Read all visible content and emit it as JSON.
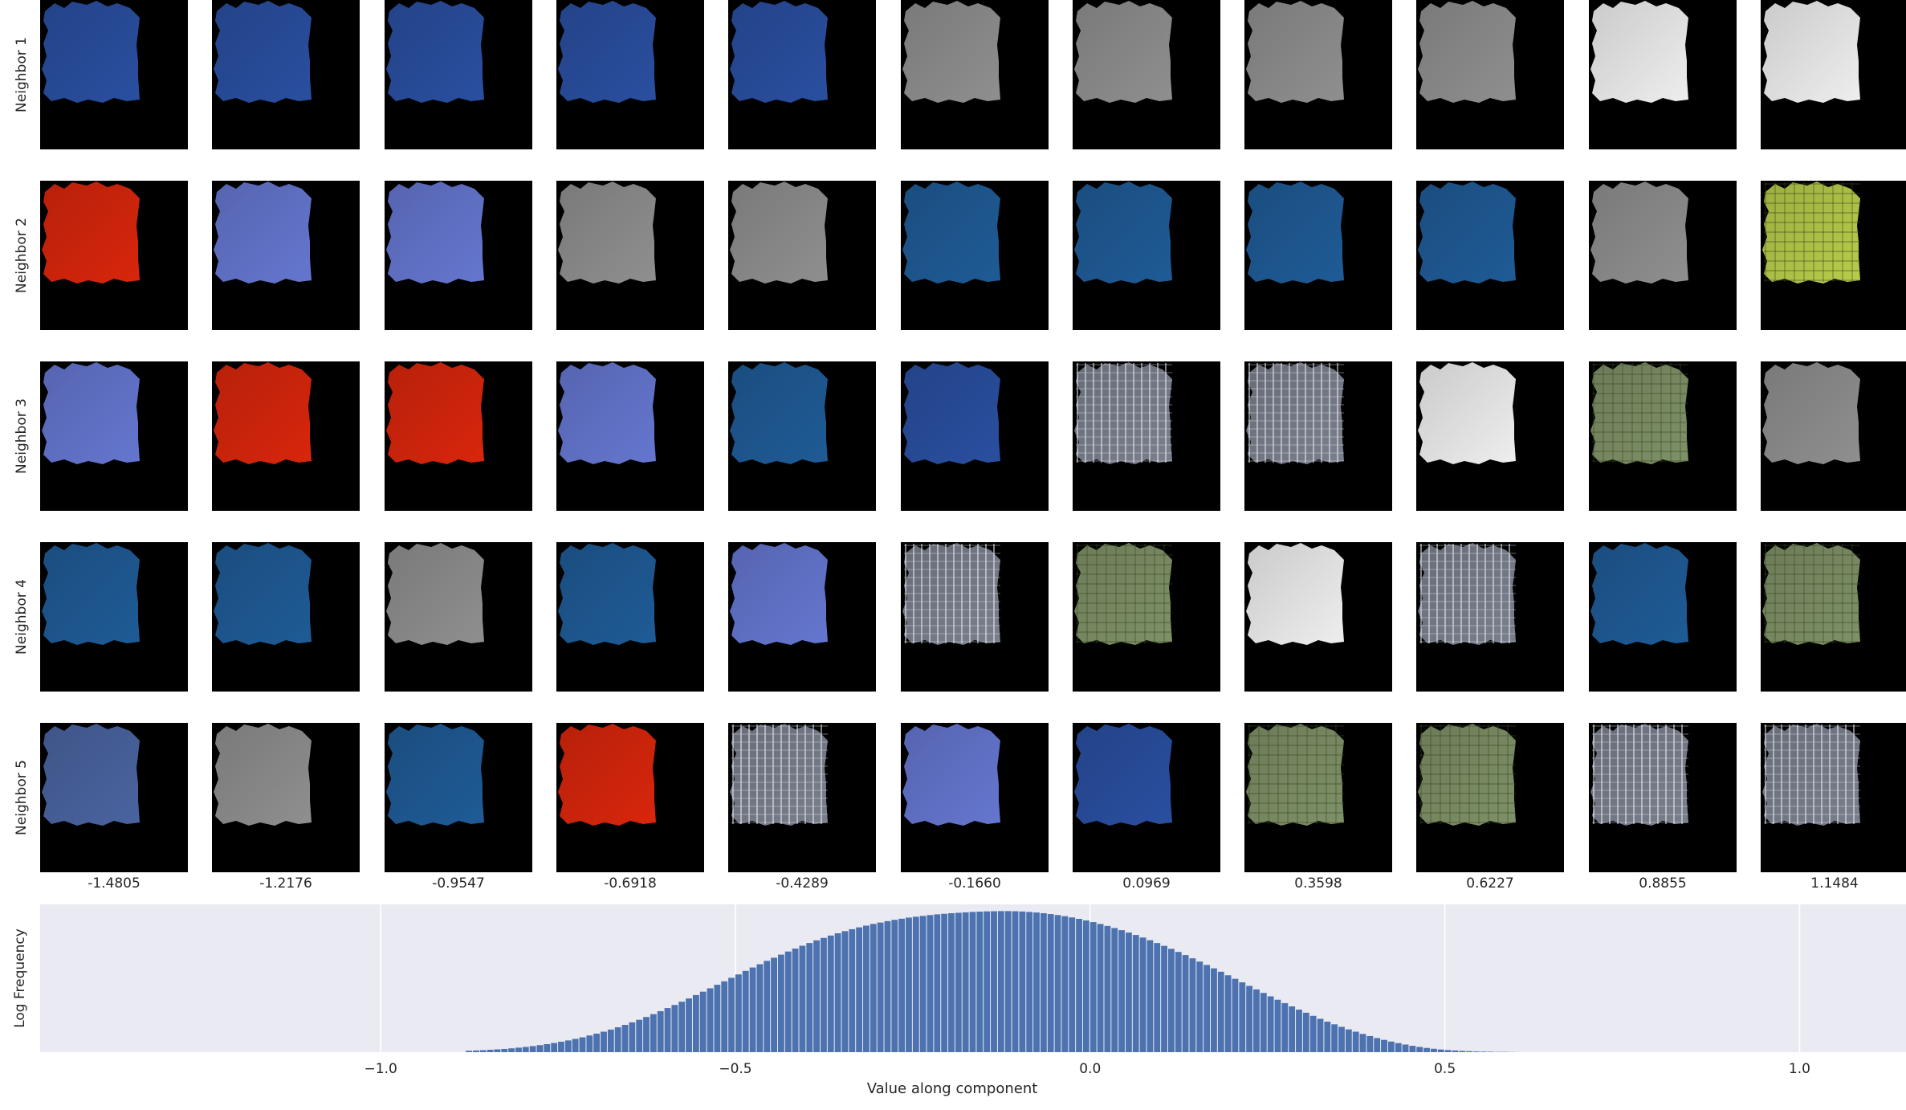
{
  "grid": {
    "row_labels": [
      "Neighbor 1",
      "Neighbor 2",
      "Neighbor 3",
      "Neighbor 4",
      "Neighbor 5"
    ],
    "column_values": [
      "-1.4805",
      "-1.2176",
      "-0.9547",
      "-0.6918",
      "-0.4289",
      "-0.1660",
      "0.0969",
      "0.3598",
      "0.6227",
      "0.8855",
      "1.1484"
    ],
    "texture_colors": {
      "blue-dark": "#2a4fa0",
      "blue-light": "#6576cf",
      "blue-steel": "#1f5b96",
      "blue-muted": "#4a64a0",
      "red": "#d8260c",
      "gray": "#8f8f8f",
      "white": "#eeeeee",
      "sparkle": "#7a7f8c",
      "green-grid": "#b8cc4a",
      "terrain": "#7f9168"
    },
    "tiles": [
      [
        "blue-dark",
        "blue-dark",
        "blue-dark",
        "blue-dark",
        "blue-dark",
        "gray",
        "gray",
        "gray",
        "gray",
        "white",
        "white"
      ],
      [
        "red",
        "blue-light",
        "blue-light",
        "gray",
        "gray",
        "blue-steel",
        "blue-steel",
        "blue-steel",
        "blue-steel",
        "gray",
        "green-grid"
      ],
      [
        "blue-light",
        "red",
        "red",
        "blue-light",
        "blue-steel",
        "blue-dark",
        "sparkle",
        "sparkle",
        "white",
        "terrain",
        "gray"
      ],
      [
        "blue-steel",
        "blue-steel",
        "gray",
        "blue-steel",
        "blue-light",
        "sparkle",
        "terrain",
        "white",
        "sparkle",
        "blue-steel",
        "terrain"
      ],
      [
        "blue-muted",
        "gray",
        "blue-steel",
        "red",
        "sparkle",
        "blue-light",
        "blue-dark",
        "terrain",
        "terrain",
        "sparkle",
        "sparkle"
      ]
    ]
  },
  "chart_data": {
    "type": "bar",
    "title": "",
    "xlabel": "Value along component",
    "ylabel": "Log Frequency",
    "xlim": [
      -1.48,
      1.15
    ],
    "x_ticks": [
      -1.0,
      -0.5,
      0.0,
      0.5,
      1.0
    ],
    "x_tick_labels": [
      "−1.0",
      "−0.5",
      "0.0",
      "0.5",
      "1.0"
    ],
    "grid": true,
    "bar_color": "#4c72b0",
    "background": "#eaeaf2",
    "bins": {
      "start": -0.88,
      "end": 0.6,
      "width": 0.01,
      "relative_heights": [
        0.01,
        0.012,
        0.014,
        0.017,
        0.02,
        0.023,
        0.027,
        0.032,
        0.037,
        0.043,
        0.05,
        0.057,
        0.065,
        0.074,
        0.083,
        0.094,
        0.105,
        0.118,
        0.131,
        0.145,
        0.16,
        0.176,
        0.193,
        0.211,
        0.229,
        0.249,
        0.269,
        0.29,
        0.312,
        0.334,
        0.357,
        0.38,
        0.404,
        0.428,
        0.452,
        0.477,
        0.501,
        0.526,
        0.55,
        0.575,
        0.599,
        0.622,
        0.646,
        0.668,
        0.69,
        0.712,
        0.733,
        0.753,
        0.772,
        0.791,
        0.808,
        0.825,
        0.841,
        0.856,
        0.87,
        0.883,
        0.895,
        0.907,
        0.917,
        0.927,
        0.936,
        0.944,
        0.952,
        0.958,
        0.964,
        0.97,
        0.975,
        0.979,
        0.983,
        0.986,
        0.989,
        0.992,
        0.994,
        0.996,
        0.997,
        0.998,
        0.998,
        0.997,
        0.995,
        0.992,
        0.988,
        0.983,
        0.977,
        0.97,
        0.962,
        0.953,
        0.943,
        0.932,
        0.92,
        0.907,
        0.893,
        0.878,
        0.863,
        0.846,
        0.829,
        0.811,
        0.792,
        0.772,
        0.752,
        0.731,
        0.709,
        0.687,
        0.664,
        0.641,
        0.617,
        0.593,
        0.569,
        0.544,
        0.519,
        0.494,
        0.469,
        0.444,
        0.419,
        0.395,
        0.371,
        0.347,
        0.324,
        0.301,
        0.279,
        0.257,
        0.236,
        0.216,
        0.197,
        0.179,
        0.161,
        0.145,
        0.129,
        0.114,
        0.1,
        0.087,
        0.075,
        0.064,
        0.054,
        0.045,
        0.037,
        0.03,
        0.024,
        0.019,
        0.015,
        0.012,
        0.009,
        0.007,
        0.005,
        0.004,
        0.003,
        0.002,
        0.002,
        0.001
      ]
    }
  }
}
